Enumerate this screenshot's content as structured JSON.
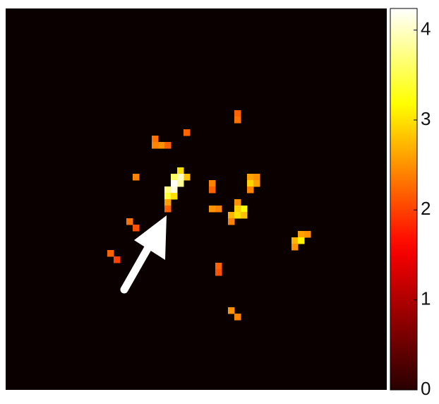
{
  "chart_data": {
    "type": "heatmap",
    "colormap": "hot",
    "cells": {
      "x": [
        36,
        36,
        23,
        24,
        25,
        23,
        28,
        20,
        27,
        28,
        26,
        27,
        26,
        27,
        25,
        26,
        25,
        26,
        25,
        25,
        32,
        32,
        38,
        39,
        38,
        39,
        38,
        32,
        33,
        36,
        37,
        36,
        35,
        36,
        37,
        35,
        19,
        20,
        46,
        47,
        45,
        46,
        45,
        16,
        17,
        33,
        33,
        35,
        36
      ],
      "y": [
        16,
        17,
        20,
        21,
        21,
        21,
        19,
        26,
        25,
        26,
        26,
        26,
        27,
        27,
        28,
        28,
        29,
        29,
        30,
        31,
        27,
        28,
        26,
        26,
        27,
        27,
        28,
        31,
        31,
        30,
        31,
        31,
        32,
        32,
        32,
        33,
        33,
        34,
        35,
        35,
        36,
        36,
        37,
        38,
        39,
        40,
        41,
        47,
        48
      ],
      "values": [
        2.2,
        2.3,
        2.3,
        2.5,
        2.2,
        2.4,
        2.2,
        2.4,
        3.0,
        2.8,
        3.6,
        4.0,
        4.2,
        3.8,
        3.7,
        4.1,
        3.4,
        3.0,
        2.6,
        2.2,
        2.4,
        2.2,
        2.6,
        2.5,
        2.9,
        2.6,
        2.4,
        2.5,
        2.4,
        2.5,
        3.2,
        2.9,
        2.7,
        3.0,
        2.8,
        2.4,
        2.3,
        2.1,
        2.6,
        2.5,
        2.7,
        3.1,
        2.5,
        2.2,
        2.0,
        2.2,
        2.1,
        2.5,
        2.4
      ]
    },
    "colorbar": {
      "ylim": [
        0,
        4.24
      ],
      "yticks": [
        0,
        1,
        2,
        3,
        4
      ]
    }
  }
}
